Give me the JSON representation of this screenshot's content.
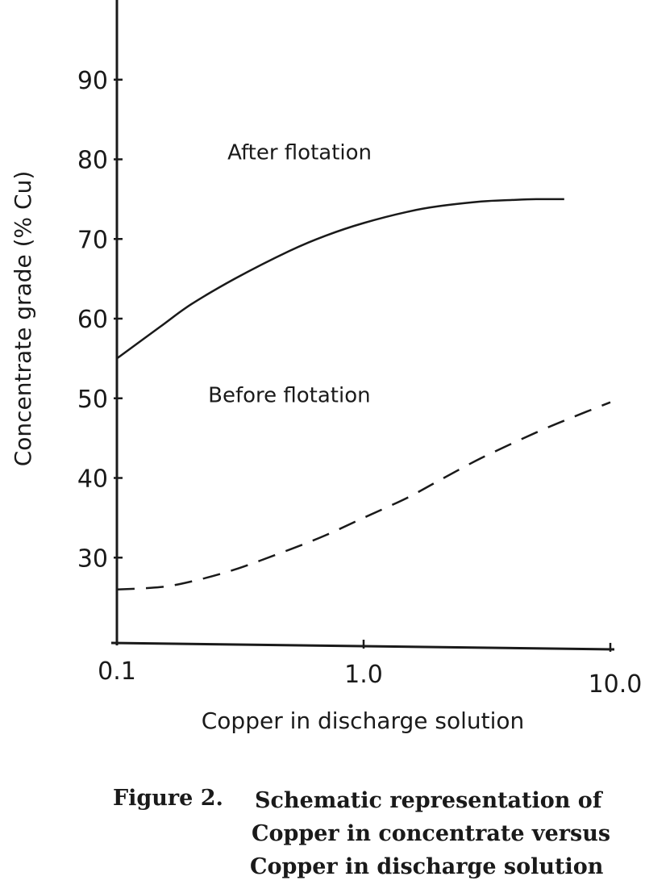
{
  "chart_data": {
    "type": "line",
    "xscale": "log",
    "xlabel": "Copper in discharge solution",
    "ylabel": "Concentrate grade (% Cu)",
    "xlim": [
      0.1,
      10.0
    ],
    "ylim": [
      20,
      100
    ],
    "xticks": [
      "0.1",
      "1.0",
      "10.0"
    ],
    "xtick_values": [
      0.1,
      1.0,
      10.0
    ],
    "yticks": [
      "30",
      "40",
      "50",
      "60",
      "70",
      "80",
      "90"
    ],
    "ytick_values": [
      30,
      40,
      50,
      60,
      70,
      80,
      90
    ],
    "grid": false,
    "series": [
      {
        "name": "After flotation",
        "style": "solid",
        "x": [
          0.1,
          0.15,
          0.2,
          0.3,
          0.5,
          0.7,
          1.0,
          1.5,
          2.0,
          3.0,
          4.0,
          5.0,
          6.5
        ],
        "y": [
          55.0,
          59.0,
          61.8,
          65.0,
          68.5,
          70.4,
          72.0,
          73.4,
          74.1,
          74.7,
          74.9,
          75.0,
          75.0
        ]
      },
      {
        "name": "Before flotation",
        "style": "dashed",
        "x": [
          0.1,
          0.15,
          0.2,
          0.3,
          0.5,
          0.7,
          1.0,
          1.5,
          2.0,
          3.0,
          5.0,
          7.0,
          10.0
        ],
        "y": [
          26.0,
          26.3,
          27.0,
          28.5,
          31.0,
          32.8,
          35.0,
          37.5,
          39.6,
          42.5,
          45.7,
          47.6,
          49.5
        ]
      }
    ],
    "annotations": [
      {
        "text": "After flotation",
        "x": 0.55,
        "y": 80
      },
      {
        "text": "Before flotation",
        "x": 0.5,
        "y": 49.5
      }
    ]
  },
  "caption": {
    "label": "Figure 2.",
    "lines": [
      "Schematic representation of",
      "Copper in concentrate versus",
      "Copper in discharge solution"
    ]
  },
  "colors": {
    "ink": "#1a1a1a",
    "background": "#ffffff"
  }
}
